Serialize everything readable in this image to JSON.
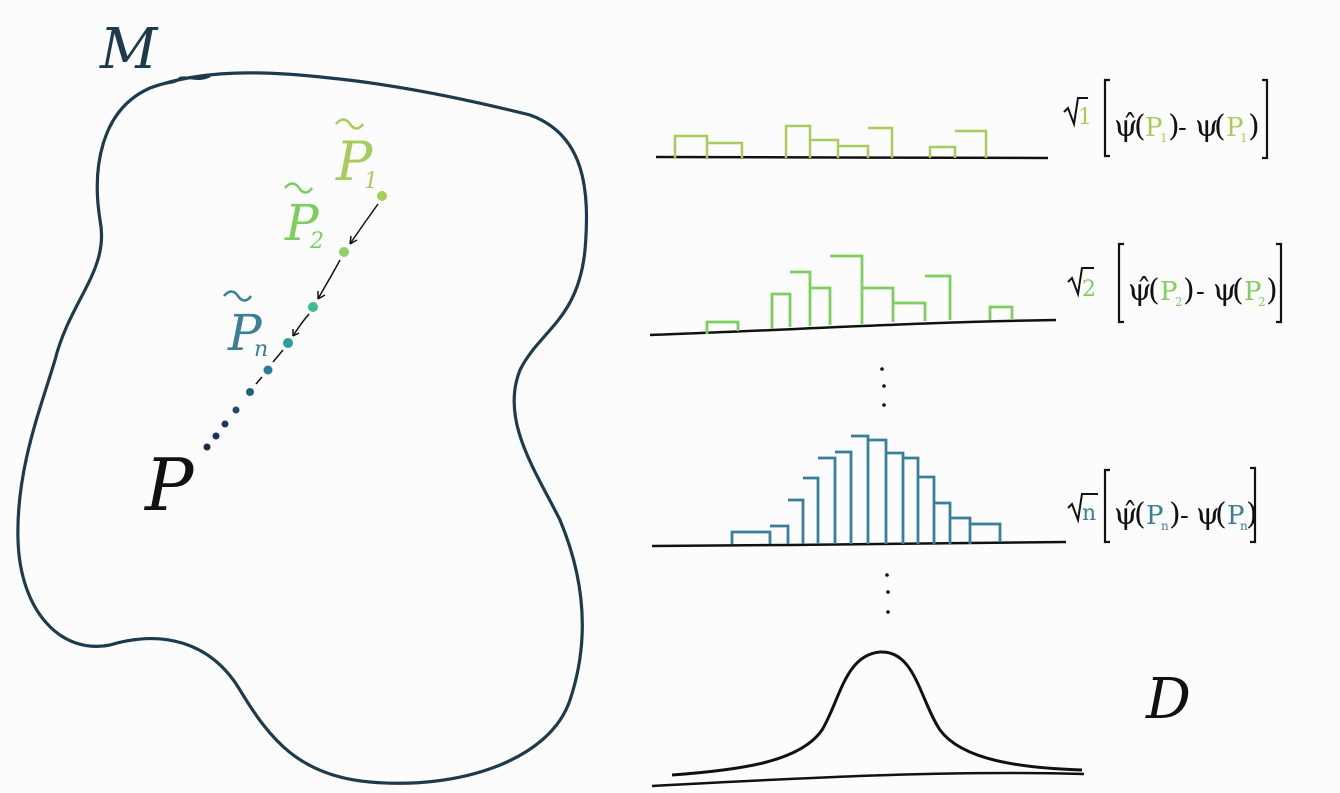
{
  "manifold": {
    "label": "M"
  },
  "points": {
    "target": "P",
    "p1": {
      "base": "P",
      "sub": "1",
      "color": "#a8cc5a"
    },
    "p2": {
      "base": "P",
      "sub": "2",
      "color": "#7ccf5e"
    },
    "pn": {
      "base": "P",
      "sub": "n",
      "color": "#3a7f9a"
    }
  },
  "rows": [
    {
      "root": "1",
      "psi_hat": "ψ̂",
      "psi": "ψ",
      "P": "P",
      "sub": "1",
      "color": "#a8cc5a"
    },
    {
      "root": "2",
      "psi_hat": "ψ̂",
      "psi": "ψ",
      "P": "P",
      "sub": "2",
      "color": "#7ccf5e"
    },
    {
      "root": "n",
      "psi_hat": "ψ̂",
      "psi": "ψ",
      "P": "P",
      "sub": "n",
      "color": "#3a7f9a"
    }
  ],
  "limit": {
    "label": "D",
    "color": "#111111"
  },
  "colors": {
    "outline": "#1d3b4c",
    "dots": "#1f3550"
  }
}
